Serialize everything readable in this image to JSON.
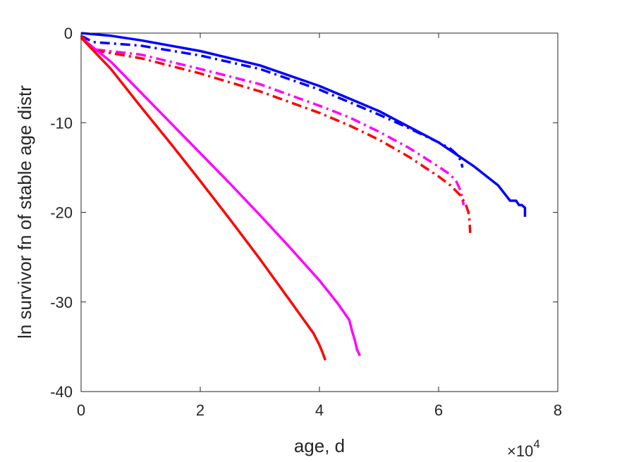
{
  "chart_data": {
    "type": "line",
    "title": "",
    "xlabel": "age, d",
    "ylabel": "ln survivor fn of stable age distr",
    "x_exponent_label": "×10",
    "x_exponent_power": "4",
    "xlim": [
      0,
      80000
    ],
    "ylim": [
      -40,
      0
    ],
    "xticks": [
      0,
      20000,
      40000,
      60000,
      80000
    ],
    "xtick_labels": [
      "0",
      "2",
      "4",
      "6",
      "8"
    ],
    "yticks": [
      0,
      -10,
      -20,
      -30,
      -40
    ],
    "ytick_labels": [
      "0",
      "-10",
      "-20",
      "-30",
      "-40"
    ],
    "grid": false,
    "legend": "none",
    "series": [
      {
        "color": "#0000ff",
        "style": "solid",
        "x": [
          0,
          5000,
          10000,
          20000,
          30000,
          40000,
          50000,
          60000,
          66000,
          70000,
          72000,
          72500,
          73000,
          73500,
          74000,
          74500,
          74500
        ],
        "y": [
          0,
          -0.3,
          -0.8,
          -2.0,
          -3.6,
          -5.9,
          -8.7,
          -12.2,
          -14.9,
          -17.0,
          -18.7,
          -18.7,
          -18.7,
          -19.2,
          -19.2,
          -19.5,
          -20.5
        ]
      },
      {
        "color": "#0000ff",
        "style": "dashdot",
        "x": [
          0,
          2000,
          10000,
          20000,
          30000,
          40000,
          50000,
          55000,
          60000,
          62000,
          63000,
          63800,
          64000
        ],
        "y": [
          -0.3,
          -1.0,
          -1.4,
          -2.5,
          -4.0,
          -6.3,
          -9.1,
          -10.6,
          -12.2,
          -12.9,
          -13.5,
          -14.3,
          -15.0
        ]
      },
      {
        "color": "#ff00ff",
        "style": "dashdot",
        "x": [
          0,
          2000,
          10000,
          20000,
          30000,
          40000,
          45000,
          50000,
          55000,
          60000,
          62000,
          63000,
          63700,
          64000,
          64200
        ],
        "y": [
          -0.3,
          -1.8,
          -2.4,
          -4.0,
          -5.7,
          -8.1,
          -9.4,
          -11.0,
          -12.8,
          -14.9,
          -15.8,
          -16.6,
          -17.6,
          -18.5,
          -19.2
        ]
      },
      {
        "color": "#ff0000",
        "style": "dashdot",
        "x": [
          0,
          2000,
          10000,
          20000,
          30000,
          40000,
          45000,
          50000,
          55000,
          60000,
          62000,
          63500,
          64500,
          65000,
          65200,
          65300
        ],
        "y": [
          -0.3,
          -1.9,
          -2.8,
          -4.5,
          -6.5,
          -8.9,
          -10.3,
          -11.9,
          -13.8,
          -16.0,
          -17.0,
          -18.0,
          -19.0,
          -20.0,
          -21.0,
          -22.3
        ]
      },
      {
        "color": "#ff00ff",
        "style": "solid",
        "x": [
          0,
          5000,
          10000,
          15000,
          20000,
          25000,
          30000,
          35000,
          40000,
          43000,
          45000,
          45500,
          46000,
          46300,
          46800
        ],
        "y": [
          -0.5,
          -3.2,
          -6.6,
          -10.0,
          -13.4,
          -16.8,
          -20.3,
          -23.9,
          -27.6,
          -30.1,
          -32.0,
          -33.3,
          -34.4,
          -35.3,
          -36.0
        ]
      },
      {
        "color": "#ff0000",
        "style": "solid",
        "x": [
          0,
          5000,
          10000,
          15000,
          20000,
          25000,
          30000,
          35000,
          39000,
          40000,
          40500,
          41000
        ],
        "y": [
          -0.5,
          -4.0,
          -8.2,
          -12.3,
          -16.5,
          -20.8,
          -25.2,
          -29.8,
          -33.5,
          -34.8,
          -35.6,
          -36.5
        ]
      }
    ]
  }
}
